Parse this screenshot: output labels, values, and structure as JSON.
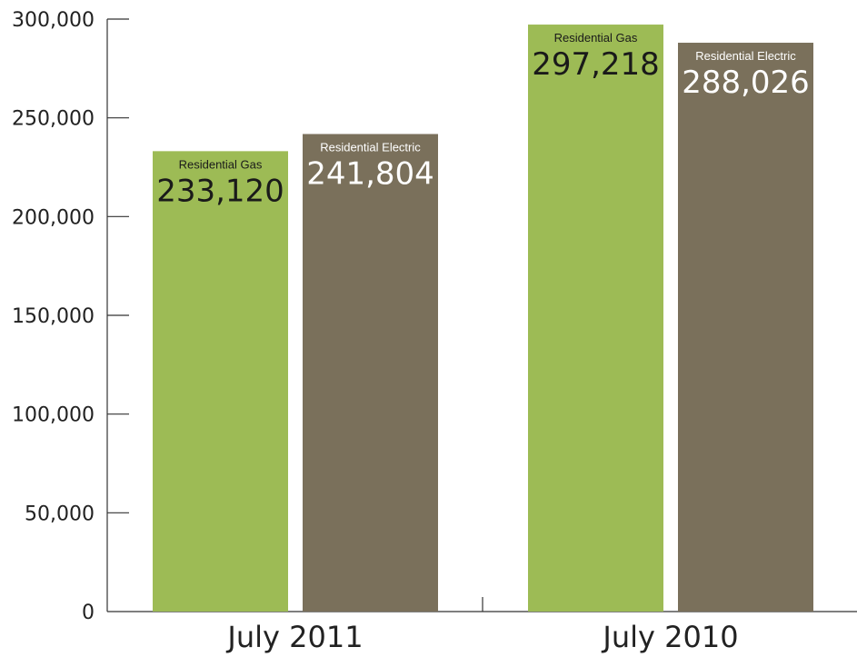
{
  "chart_data": {
    "type": "bar",
    "categories": [
      "July 2011",
      "July 2010"
    ],
    "series": [
      {
        "name": "Residential Gas",
        "values": [
          233120,
          297218
        ]
      },
      {
        "name": "Residential Electric",
        "values": [
          241804,
          288026
        ]
      }
    ],
    "value_labels": [
      [
        "233,120",
        "297,218"
      ],
      [
        "241,804",
        "288,026"
      ]
    ],
    "ylim": [
      0,
      300000
    ],
    "yticks": [
      0,
      50000,
      100000,
      150000,
      200000,
      250000,
      300000
    ],
    "ytick_labels": [
      "0",
      "50,000",
      "100,000",
      "150,000",
      "200,000",
      "250,000",
      "300,000"
    ],
    "title": "",
    "xlabel": "",
    "ylabel": "",
    "grid": false,
    "legend": "none",
    "colors": {
      "gas": "#9dbb55",
      "electric": "#7a705b",
      "axis": "#333333",
      "text": "#222222"
    }
  }
}
